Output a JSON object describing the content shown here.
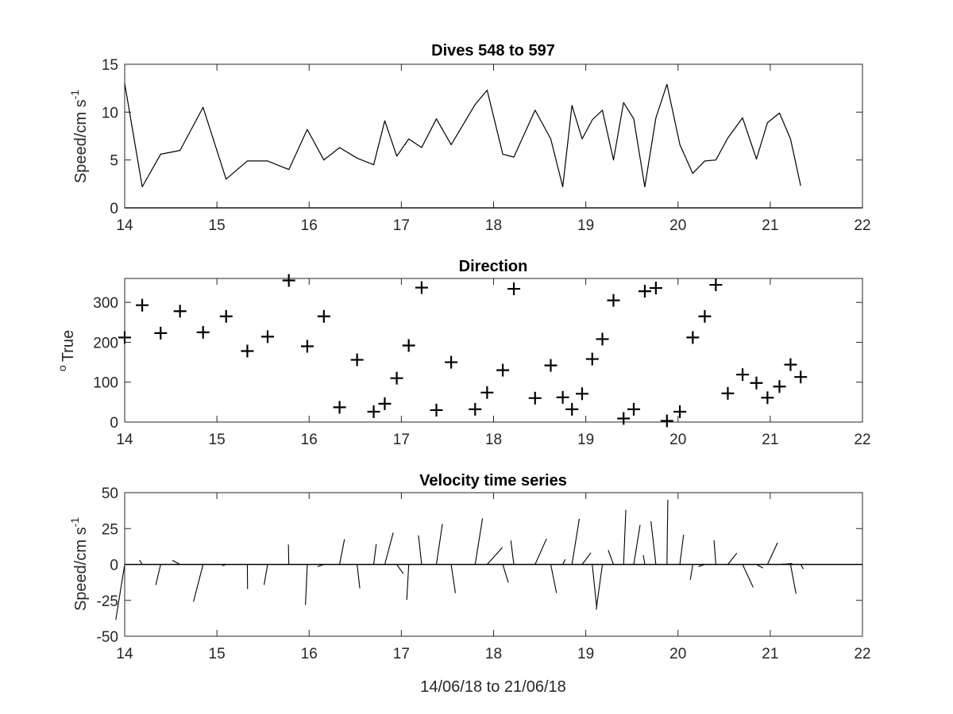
{
  "figure": {
    "colors": {
      "line": "#000000",
      "axes": "#262626",
      "background": "#ffffff"
    }
  },
  "chart_data": [
    {
      "type": "line",
      "title": "Dives 548 to 597",
      "ylabel": "Speed/cm s",
      "ylabel_superscript": "-1",
      "xlim": [
        14,
        22
      ],
      "ylim": [
        0,
        15
      ],
      "xticks": [
        "14",
        "15",
        "16",
        "17",
        "18",
        "19",
        "20",
        "21",
        "22"
      ],
      "yticks": [
        "0",
        "5",
        "10",
        "15"
      ],
      "grid": false,
      "zero_line": true,
      "series": [
        {
          "x": [
            14.0,
            14.19,
            14.39,
            14.6,
            14.85,
            15.1,
            15.33,
            15.55,
            15.78,
            15.98,
            16.16,
            16.33,
            16.52,
            16.7,
            16.82,
            16.95,
            17.08,
            17.22,
            17.38,
            17.54,
            17.8,
            17.93,
            18.1,
            18.22,
            18.45,
            18.62,
            18.75,
            18.85,
            18.96,
            19.07,
            19.18,
            19.3,
            19.41,
            19.52,
            19.64,
            19.76,
            19.88,
            20.02,
            20.16,
            20.29,
            20.41,
            20.54,
            20.7,
            20.85,
            20.97,
            21.1,
            21.22,
            21.33
          ],
          "values": [
            13.0,
            2.2,
            5.6,
            6.0,
            10.5,
            3.0,
            4.9,
            4.9,
            4.0,
            8.2,
            5.0,
            6.3,
            5.2,
            4.5,
            9.1,
            5.4,
            7.2,
            6.3,
            9.3,
            6.6,
            10.8,
            12.3,
            5.6,
            5.3,
            10.2,
            7.2,
            2.2,
            10.7,
            7.2,
            9.2,
            10.2,
            5.0,
            11.0,
            9.3,
            2.2,
            9.4,
            12.9,
            6.6,
            3.6,
            4.9,
            5.0,
            7.3,
            9.4,
            5.1,
            8.9,
            9.9,
            7.2,
            2.3
          ]
        }
      ]
    },
    {
      "type": "scatter",
      "title": "Direction",
      "ylabel": "True",
      "ylabel_prefix_superscript": "o",
      "xlim": [
        14,
        22
      ],
      "ylim": [
        0,
        360
      ],
      "xticks": [
        "14",
        "15",
        "16",
        "17",
        "18",
        "19",
        "20",
        "21",
        "22"
      ],
      "yticks": [
        "0",
        "100",
        "200",
        "300"
      ],
      "grid": false,
      "marker": "+",
      "series": [
        {
          "x": [
            14.0,
            14.19,
            14.39,
            14.6,
            14.85,
            15.1,
            15.33,
            15.55,
            15.78,
            15.98,
            16.16,
            16.33,
            16.52,
            16.7,
            16.82,
            16.95,
            17.08,
            17.22,
            17.38,
            17.54,
            17.8,
            17.93,
            18.1,
            18.22,
            18.45,
            18.62,
            18.75,
            18.85,
            18.96,
            19.07,
            19.18,
            19.3,
            19.41,
            19.52,
            19.64,
            19.76,
            19.88,
            20.02,
            20.16,
            20.29,
            20.41,
            20.54,
            20.7,
            20.85,
            20.97,
            21.1,
            21.22,
            21.33
          ],
          "values": [
            212,
            293,
            223,
            278,
            225,
            265,
            178,
            214,
            355,
            190,
            265,
            37,
            156,
            26,
            46,
            110,
            192,
            337,
            30,
            150,
            32,
            74,
            130,
            334,
            60,
            142,
            62,
            32,
            71,
            158,
            208,
            305,
            9,
            32,
            328,
            336,
            3,
            26,
            212,
            265,
            344,
            72,
            119,
            98,
            61,
            89,
            144,
            113
          ]
        }
      ]
    },
    {
      "type": "vector",
      "title": "Velocity time series",
      "ylabel": "Speed/cm s",
      "ylabel_superscript": "-1",
      "xlabel": "14/06/18 to 21/06/18",
      "xlim": [
        14,
        22
      ],
      "ylim": [
        -50,
        50
      ],
      "xticks": [
        "14",
        "15",
        "16",
        "17",
        "18",
        "19",
        "20",
        "21",
        "22"
      ],
      "yticks": [
        "-50",
        "-25",
        "0",
        "25",
        "50"
      ],
      "grid": false,
      "zero_line": true,
      "vector_from": "dives_speed_and_direction"
    }
  ]
}
